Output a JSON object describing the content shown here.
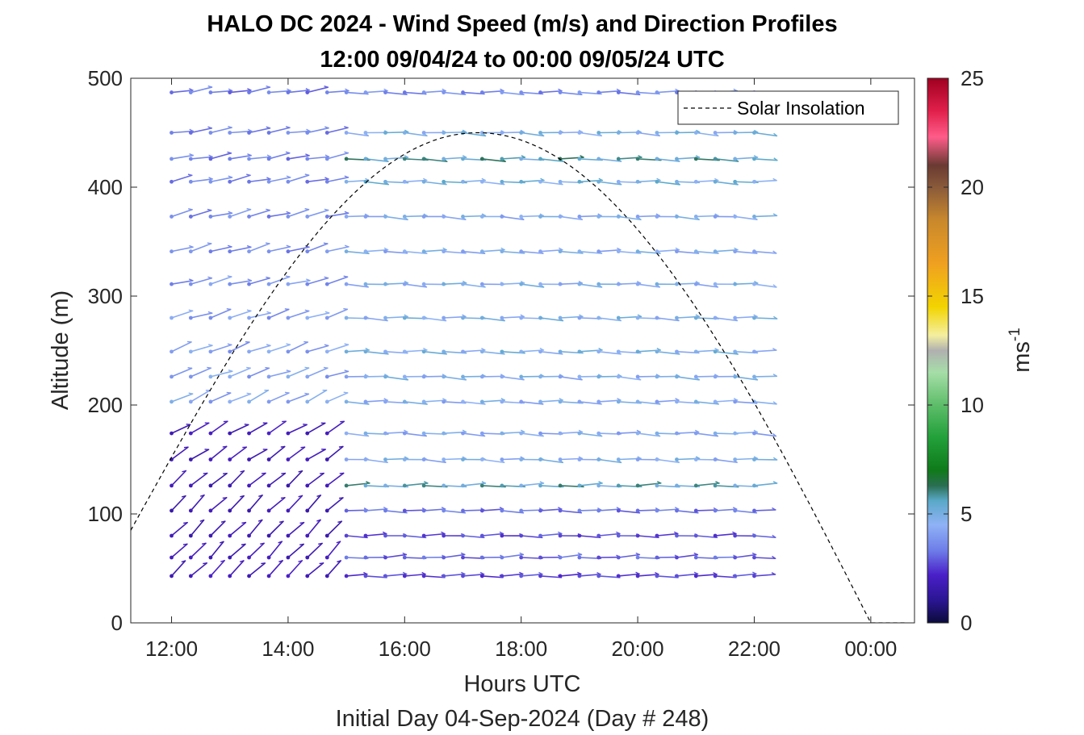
{
  "chart_data": {
    "type": "wind_barb_profile",
    "title": "HALO DC 2024 - Wind Speed (m/s) and Direction Profiles",
    "subtitle": "12:00 09/04/24 to 00:00 09/05/24  UTC",
    "xlabel": "Hours UTC",
    "xlabel2": "Initial Day 04-Sep-2024 (Day # 248)",
    "ylabel": "Altitude (m)",
    "x_range_hours": [
      11.3,
      24.75
    ],
    "y_range_m": [
      0,
      500
    ],
    "x_ticks": [
      {
        "hour": 12,
        "label": "12:00"
      },
      {
        "hour": 14,
        "label": "14:00"
      },
      {
        "hour": 16,
        "label": "16:00"
      },
      {
        "hour": 18,
        "label": "18:00"
      },
      {
        "hour": 20,
        "label": "20:00"
      },
      {
        "hour": 22,
        "label": "22:00"
      },
      {
        "hour": 24,
        "label": "00:00"
      }
    ],
    "y_ticks": [
      "0",
      "100",
      "200",
      "300",
      "400",
      "500"
    ],
    "grid": false,
    "legend": {
      "placement": "top-right",
      "entries": [
        "Solar Insolation"
      ]
    },
    "colorbar": {
      "label": "ms",
      "label_exponent": "-1",
      "range": [
        0,
        25
      ],
      "ticks": [
        "0",
        "5",
        "10",
        "15",
        "20",
        "25"
      ],
      "stops": [
        {
          "value": 0,
          "color": "#0b0b3a"
        },
        {
          "value": 1,
          "color": "#2a1590"
        },
        {
          "value": 2.2,
          "color": "#4a1fc8"
        },
        {
          "value": 3.3,
          "color": "#6d7ce8"
        },
        {
          "value": 4.5,
          "color": "#8fb2f5"
        },
        {
          "value": 5.6,
          "color": "#5aa9c9"
        },
        {
          "value": 6.3,
          "color": "#2a6e52"
        },
        {
          "value": 7,
          "color": "#0f7a1a"
        },
        {
          "value": 8.5,
          "color": "#22a03a"
        },
        {
          "value": 10,
          "color": "#5ebd6a"
        },
        {
          "value": 11.5,
          "color": "#a6dea8"
        },
        {
          "value": 12.5,
          "color": "#b0b0b0"
        },
        {
          "value": 13.2,
          "color": "#f4efa0"
        },
        {
          "value": 14.5,
          "color": "#f2d400"
        },
        {
          "value": 16.5,
          "color": "#f0a020"
        },
        {
          "value": 18.5,
          "color": "#c8882c"
        },
        {
          "value": 20,
          "color": "#8a5a3a"
        },
        {
          "value": 21,
          "color": "#6a3a32"
        },
        {
          "value": 22.3,
          "color": "#ff5c8a"
        },
        {
          "value": 23.5,
          "color": "#e0204a"
        },
        {
          "value": 25,
          "color": "#a00020"
        }
      ]
    },
    "solar_insolation": {
      "start_hour": 11.3,
      "start_alt": 85,
      "peak_hour": 17.25,
      "peak_alt": 450,
      "zero_hour": 24.0,
      "end_hour": 24.6
    },
    "profiles": {
      "altitudes_m": [
        43,
        60,
        80,
        103,
        126,
        150,
        174,
        203,
        226,
        249,
        280,
        311,
        341,
        373,
        405,
        426,
        450,
        487
      ],
      "morning": {
        "hours": [
          12.0,
          12.33,
          12.67,
          13.0,
          13.33,
          13.67,
          14.0,
          14.33,
          14.67
        ],
        "note": "speed (m/s) and direction (deg) by altitude index",
        "speed": [
          2.0,
          1.9,
          1.8,
          1.8,
          1.8,
          1.9,
          2.0,
          4.3,
          4.2,
          4.1,
          4.0,
          3.8,
          3.6,
          3.6,
          3.5,
          3.4,
          3.5,
          3.3
        ],
        "dir_deg": [
          225,
          225,
          225,
          225,
          230,
          235,
          240,
          245,
          250,
          250,
          252,
          255,
          255,
          255,
          258,
          260,
          260,
          262
        ]
      },
      "afternoon": {
        "hours": [
          15.0,
          15.33,
          15.67,
          16.0,
          16.33,
          16.67,
          17.0,
          17.33,
          17.67,
          18.0,
          18.33,
          18.67,
          19.0,
          19.33,
          19.67,
          20.0,
          20.33,
          20.67,
          21.0,
          21.33,
          21.67,
          22.0
        ],
        "speed": [
          2.6,
          3.0,
          2.7,
          3.2,
          5.5,
          4.6,
          4.4,
          4.5,
          4.6,
          4.8,
          4.7,
          4.6,
          4.5,
          4.5,
          5.0,
          5.6,
          4.8,
          3.6
        ],
        "dir_deg": [
          268,
          268,
          270,
          270,
          270,
          272,
          272,
          272,
          272,
          272,
          272,
          272,
          272,
          272,
          272,
          272,
          272,
          272
        ]
      }
    }
  }
}
